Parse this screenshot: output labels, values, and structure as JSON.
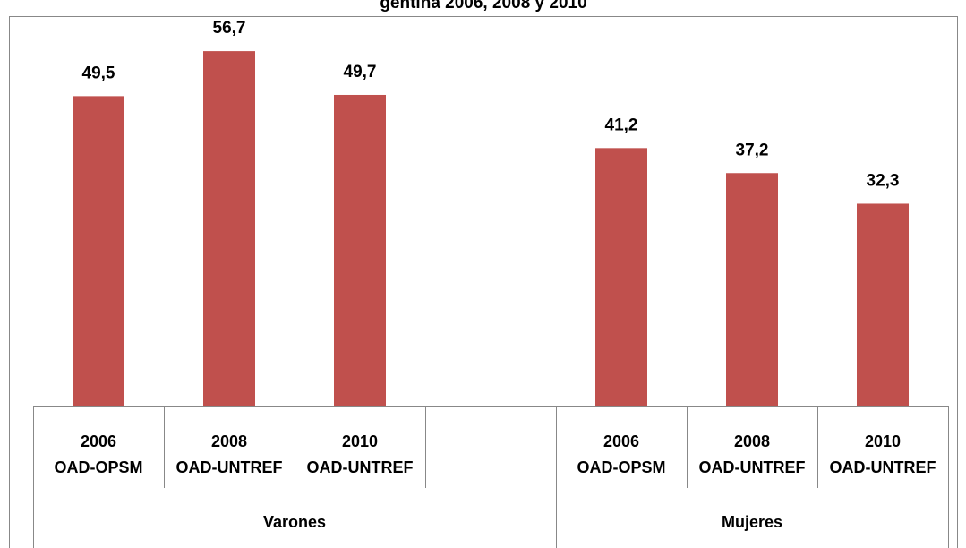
{
  "chart_data": {
    "type": "bar",
    "title": "gentina 2006, 2008 y 2010",
    "categories": [
      [
        "2006",
        "OAD-OPSM"
      ],
      [
        "2008",
        "OAD-UNTREF"
      ],
      [
        "2010",
        "OAD-UNTREF"
      ],
      null,
      [
        "2006",
        "OAD-OPSM"
      ],
      [
        "2008",
        "OAD-UNTREF"
      ],
      [
        "2010",
        "OAD-UNTREF"
      ]
    ],
    "group_labels": [
      "Varones",
      "Mujeres"
    ],
    "values": [
      49.5,
      56.7,
      49.7,
      null,
      41.2,
      37.2,
      32.3
    ],
    "value_labels": [
      "49,5",
      "56,7",
      "49,7",
      null,
      "41,2",
      "37,2",
      "32,3"
    ],
    "color": "#c0504d",
    "ylim": [
      0,
      62.3
    ]
  }
}
